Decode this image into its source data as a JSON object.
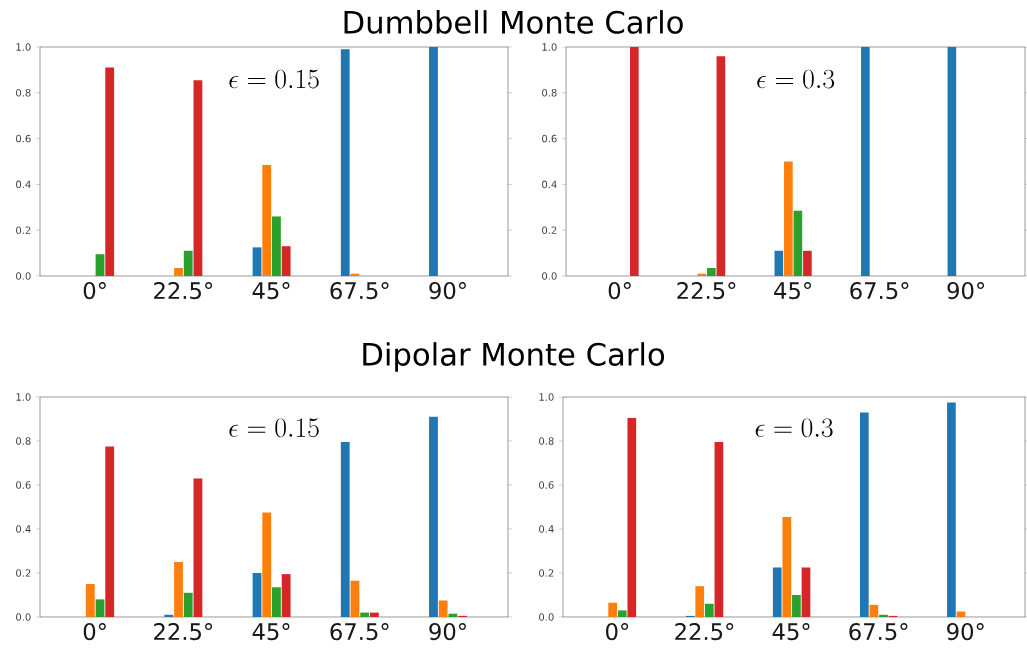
{
  "chart_data": [
    {
      "type": "bar",
      "title": "Dumbbell Monte Carlo",
      "categories": [
        "0°",
        "22.5°",
        "45°",
        "67.5°",
        "90°"
      ],
      "ylim": [
        0,
        1
      ],
      "yticks": [
        {
          "value": 0,
          "label": "0.0"
        },
        {
          "value": 0.2,
          "label": "0.2"
        },
        {
          "value": 0.4,
          "label": "0.4"
        },
        {
          "value": 0.6,
          "label": "0.6"
        },
        {
          "value": 0.8,
          "label": "0.8"
        },
        {
          "value": 1,
          "label": "1.0"
        }
      ],
      "annotations": [
        "\\epsilon = 0.15"
      ],
      "series": [
        {
          "color": "#1f77b4",
          "values": [
            0,
            0,
            0.125,
            0.99,
            1.0
          ]
        },
        {
          "color": "#ff7f0e",
          "values": [
            0,
            0.035,
            0.485,
            0.01,
            0
          ]
        },
        {
          "color": "#2ca02c",
          "values": [
            0.095,
            0.11,
            0.26,
            0,
            0
          ]
        },
        {
          "color": "#d62728",
          "values": [
            0.91,
            0.855,
            0.13,
            0,
            0
          ]
        }
      ]
    },
    {
      "type": "bar",
      "categories": [
        "0°",
        "22.5°",
        "45°",
        "67.5°",
        "90°"
      ],
      "ylim": [
        0,
        1
      ],
      "yticks": [
        {
          "value": 0,
          "label": "0.0"
        },
        {
          "value": 0.2,
          "label": "0.2"
        },
        {
          "value": 0.4,
          "label": "0.4"
        },
        {
          "value": 0.6,
          "label": "0.6"
        },
        {
          "value": 0.8,
          "label": "0.8"
        },
        {
          "value": 1,
          "label": "1.0"
        }
      ],
      "annotations": [
        "\\epsilon = 0.3"
      ],
      "series": [
        {
          "color": "#1f77b4",
          "values": [
            0,
            0,
            0.11,
            1.0,
            1.0
          ]
        },
        {
          "color": "#ff7f0e",
          "values": [
            0,
            0.01,
            0.5,
            0,
            0
          ]
        },
        {
          "color": "#2ca02c",
          "values": [
            0,
            0.035,
            0.285,
            0,
            0
          ]
        },
        {
          "color": "#d62728",
          "values": [
            1.0,
            0.96,
            0.11,
            0,
            0
          ]
        }
      ]
    },
    {
      "type": "bar",
      "title": "Dipolar Monte Carlo",
      "categories": [
        "0°",
        "22.5°",
        "45°",
        "67.5°",
        "90°"
      ],
      "ylim": [
        0,
        1
      ],
      "yticks": [
        {
          "value": 0,
          "label": "0.0"
        },
        {
          "value": 0.2,
          "label": "0.2"
        },
        {
          "value": 0.4,
          "label": "0.4"
        },
        {
          "value": 0.6,
          "label": "0.6"
        },
        {
          "value": 0.8,
          "label": "0.8"
        },
        {
          "value": 1,
          "label": "1.0"
        }
      ],
      "annotations": [
        "\\epsilon = 0.15"
      ],
      "series": [
        {
          "color": "#1f77b4",
          "values": [
            0,
            0.01,
            0.2,
            0.795,
            0.91
          ]
        },
        {
          "color": "#ff7f0e",
          "values": [
            0.15,
            0.25,
            0.475,
            0.165,
            0.075
          ]
        },
        {
          "color": "#2ca02c",
          "values": [
            0.08,
            0.11,
            0.135,
            0.02,
            0.015
          ]
        },
        {
          "color": "#d62728",
          "values": [
            0.775,
            0.63,
            0.195,
            0.02,
            0.005
          ]
        }
      ]
    },
    {
      "type": "bar",
      "categories": [
        "0°",
        "22.5°",
        "45°",
        "67.5°",
        "90°"
      ],
      "ylim": [
        0,
        1
      ],
      "yticks": [
        {
          "value": 0,
          "label": "0.0"
        },
        {
          "value": 0.2,
          "label": "0.2"
        },
        {
          "value": 0.4,
          "label": "0.4"
        },
        {
          "value": 0.6,
          "label": "0.6"
        },
        {
          "value": 0.8,
          "label": "0.8"
        },
        {
          "value": 1,
          "label": "1.0"
        }
      ],
      "annotations": [
        "\\epsilon = 0.3"
      ],
      "series": [
        {
          "color": "#1f77b4",
          "values": [
            0,
            0.005,
            0.225,
            0.93,
            0.975
          ]
        },
        {
          "color": "#ff7f0e",
          "values": [
            0.065,
            0.14,
            0.455,
            0.055,
            0.025
          ]
        },
        {
          "color": "#2ca02c",
          "values": [
            0.03,
            0.06,
            0.1,
            0.01,
            0
          ]
        },
        {
          "color": "#d62728",
          "values": [
            0.905,
            0.795,
            0.225,
            0.005,
            0
          ]
        }
      ]
    }
  ]
}
